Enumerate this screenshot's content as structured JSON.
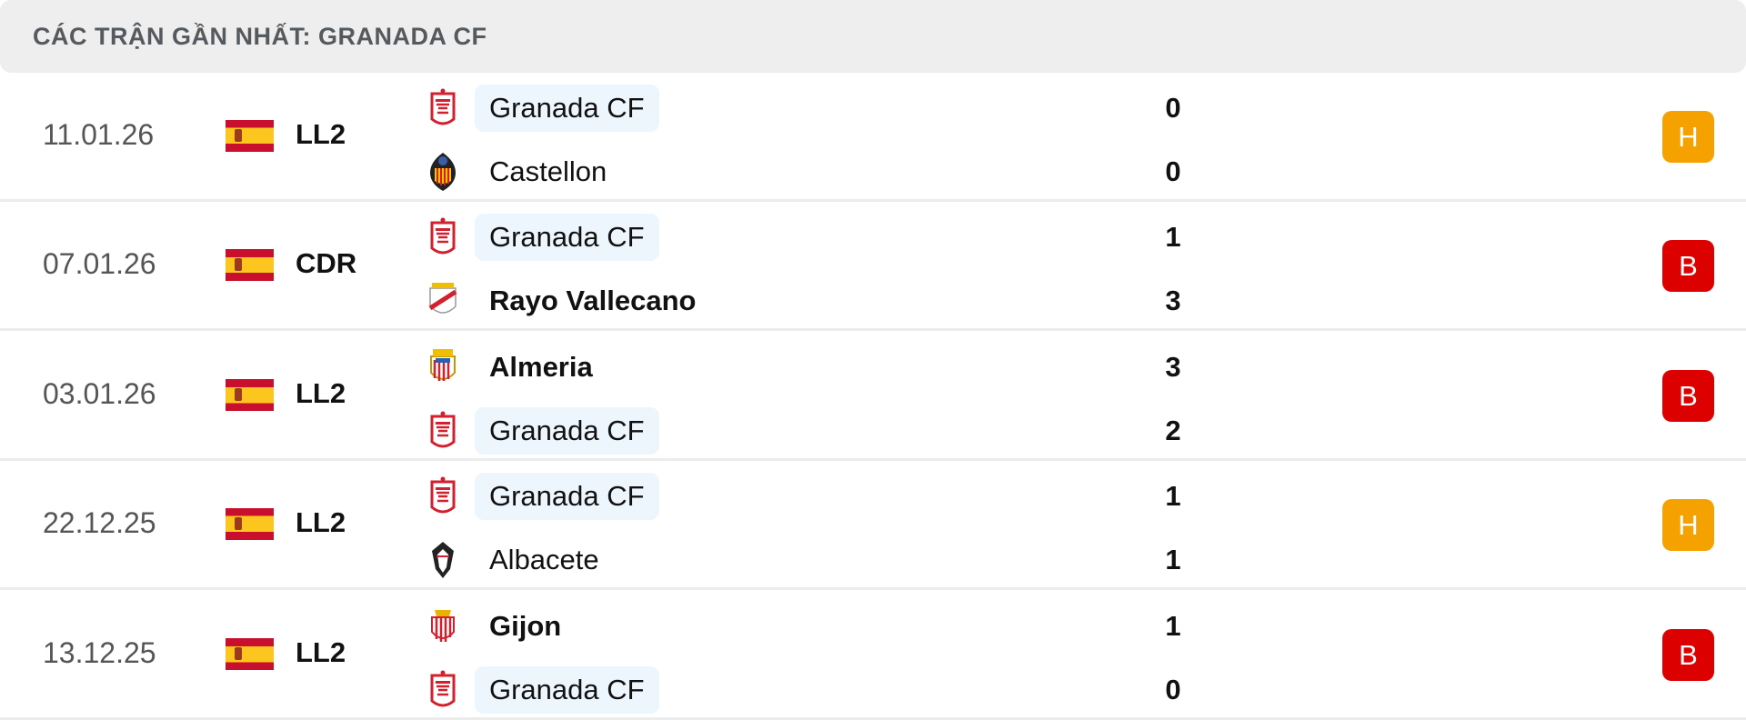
{
  "header": {
    "title": "CÁC TRẬN GẦN NHẤT: GRANADA CF"
  },
  "colors": {
    "draw": "#f5a200",
    "loss": "#dd0000",
    "highlight": "#edf5fd"
  },
  "matches": [
    {
      "date": "11.01.26",
      "league": "LL2",
      "home": {
        "name": "Granada CF",
        "score": "0",
        "logo": "granada-crest"
      },
      "away": {
        "name": "Castellon",
        "score": "0",
        "logo": "castellon-crest"
      },
      "result": "H",
      "result_type": "draw",
      "winner": "none"
    },
    {
      "date": "07.01.26",
      "league": "CDR",
      "home": {
        "name": "Granada CF",
        "score": "1",
        "logo": "granada-crest"
      },
      "away": {
        "name": "Rayo Vallecano",
        "score": "3",
        "logo": "rayo-crest"
      },
      "result": "B",
      "result_type": "loss",
      "winner": "away"
    },
    {
      "date": "03.01.26",
      "league": "LL2",
      "home": {
        "name": "Almeria",
        "score": "3",
        "logo": "almeria-crest"
      },
      "away": {
        "name": "Granada CF",
        "score": "2",
        "logo": "granada-crest"
      },
      "result": "B",
      "result_type": "loss",
      "winner": "home"
    },
    {
      "date": "22.12.25",
      "league": "LL2",
      "home": {
        "name": "Granada CF",
        "score": "1",
        "logo": "granada-crest"
      },
      "away": {
        "name": "Albacete",
        "score": "1",
        "logo": "albacete-crest"
      },
      "result": "H",
      "result_type": "draw",
      "winner": "none"
    },
    {
      "date": "13.12.25",
      "league": "LL2",
      "home": {
        "name": "Gijon",
        "score": "1",
        "logo": "gijon-crest"
      },
      "away": {
        "name": "Granada CF",
        "score": "0",
        "logo": "granada-crest"
      },
      "result": "B",
      "result_type": "loss",
      "winner": "home"
    }
  ]
}
